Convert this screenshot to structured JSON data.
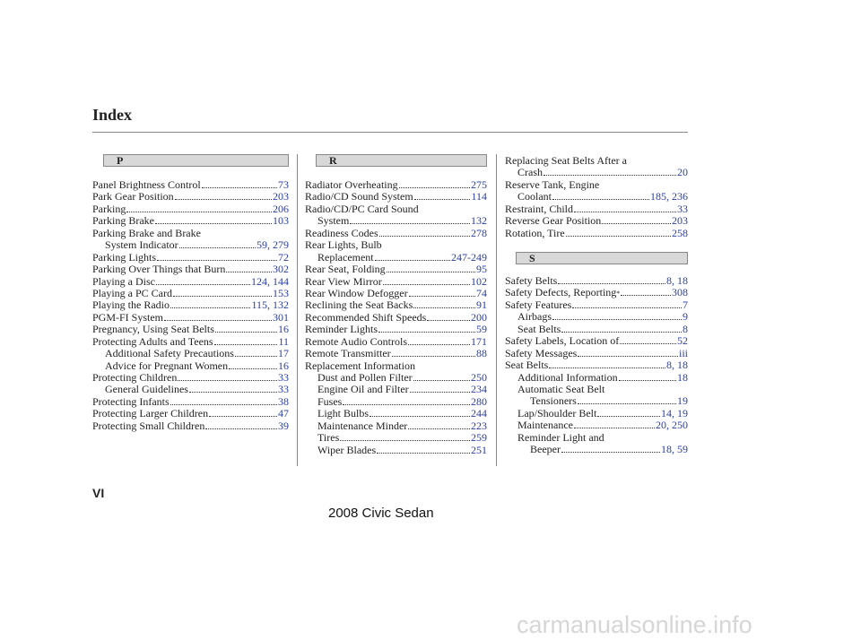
{
  "header": {
    "title": "Index"
  },
  "columns": [
    {
      "sections": [
        {
          "letter": "P",
          "entries": [
            {
              "text": [
                "Panel Brightness Control"
              ],
              "pages": "73"
            },
            {
              "text": [
                "Park Gear Position"
              ],
              "pages": "203"
            },
            {
              "text": [
                "Parking"
              ],
              "pages": "206"
            },
            {
              "text": [
                "Parking Brake"
              ],
              "pages": "103"
            },
            {
              "text": [
                "Parking Brake and Brake",
                "System Indicator"
              ],
              "pages": "59, 279"
            },
            {
              "text": [
                "Parking Lights"
              ],
              "pages": "72"
            },
            {
              "text": [
                "Parking Over Things that Burn"
              ],
              "pages": "302"
            },
            {
              "text": [
                "Playing a Disc"
              ],
              "pages": "124, 144"
            },
            {
              "text": [
                "Playing a PC Card"
              ],
              "pages": "153"
            },
            {
              "text": [
                "Playing the Radio"
              ],
              "pages": "115, 132"
            },
            {
              "text": [
                "PGM-FI System"
              ],
              "pages": "301"
            },
            {
              "text": [
                "Pregnancy, Using Seat Belts"
              ],
              "pages": "16"
            },
            {
              "text": [
                "Protecting Adults and Teens"
              ],
              "pages": "11",
              "subs": [
                {
                  "text": [
                    "Additional Safety Precautions"
                  ],
                  "pages": "17"
                },
                {
                  "text": [
                    "Advice for Pregnant Women"
                  ],
                  "pages": "16"
                }
              ]
            },
            {
              "text": [
                "Protecting Children"
              ],
              "pages": "33",
              "subs": [
                {
                  "text": [
                    "General Guidelines"
                  ],
                  "pages": "33"
                }
              ]
            },
            {
              "text": [
                "Protecting Infants"
              ],
              "pages": "38"
            },
            {
              "text": [
                "Protecting Larger Children"
              ],
              "pages": "47"
            },
            {
              "text": [
                "Protecting Small Children"
              ],
              "pages": "39"
            }
          ]
        }
      ]
    },
    {
      "sections": [
        {
          "letter": "R",
          "entries": [
            {
              "text": [
                "Radiator Overheating"
              ],
              "pages": "275"
            },
            {
              "text": [
                "Radio/CD Sound System"
              ],
              "pages": "114"
            },
            {
              "text": [
                "Radio/CD/PC Card Sound",
                "System"
              ],
              "pages": "132"
            },
            {
              "text": [
                "Readiness Codes"
              ],
              "pages": "278"
            },
            {
              "text": [
                "Rear Lights, Bulb",
                "Replacement"
              ],
              "pages": "247-249"
            },
            {
              "text": [
                "Rear Seat, Folding"
              ],
              "pages": "95"
            },
            {
              "text": [
                "Rear View Mirror"
              ],
              "pages": "102"
            },
            {
              "text": [
                "Rear Window Defogger"
              ],
              "pages": "74"
            },
            {
              "text": [
                "Reclining the Seat Backs"
              ],
              "pages": "91"
            },
            {
              "text": [
                "Recommended Shift Speeds"
              ],
              "pages": "200"
            },
            {
              "text": [
                "Reminder Lights"
              ],
              "pages": "59"
            },
            {
              "text": [
                "Remote Audio Controls"
              ],
              "pages": "171"
            },
            {
              "text": [
                "Remote Transmitter"
              ],
              "pages": "88"
            },
            {
              "text": [
                "Replacement Information"
              ],
              "subs": [
                {
                  "text": [
                    "Dust and Pollen Filter"
                  ],
                  "pages": "250"
                },
                {
                  "text": [
                    "Engine Oil and Filter"
                  ],
                  "pages": "234"
                },
                {
                  "text": [
                    "Fuses"
                  ],
                  "pages": "280"
                },
                {
                  "text": [
                    "Light Bulbs"
                  ],
                  "pages": "244"
                },
                {
                  "text": [
                    "Maintenance Minder"
                  ],
                  "pages": "223"
                },
                {
                  "text": [
                    "Tires"
                  ],
                  "pages": "259"
                },
                {
                  "text": [
                    "Wiper Blades"
                  ],
                  "pages": "251"
                }
              ]
            }
          ]
        }
      ]
    },
    {
      "sections": [
        {
          "entries": [
            {
              "text": [
                "Replacing Seat Belts After a",
                "Crash"
              ],
              "pages": "20"
            },
            {
              "text": [
                "Reserve Tank, Engine",
                "Coolant"
              ],
              "pages": "185, 236"
            },
            {
              "text": [
                "Restraint, Child"
              ],
              "pages": "33"
            },
            {
              "text": [
                "Reverse Gear Position"
              ],
              "pages": "203"
            },
            {
              "text": [
                "Rotation, Tire"
              ],
              "pages": "258"
            }
          ]
        },
        {
          "letter": "S",
          "entries": [
            {
              "text": [
                "Safety Belts"
              ],
              "pages": "8, 18"
            },
            {
              "text": [
                "Safety Defects, Reporting"
              ],
              "note": "*",
              "pages": "308"
            },
            {
              "text": [
                "Safety Features"
              ],
              "pages": "7",
              "subs": [
                {
                  "text": [
                    "Airbags"
                  ],
                  "pages": "9"
                },
                {
                  "text": [
                    "Seat Belts"
                  ],
                  "pages": "8"
                }
              ]
            },
            {
              "text": [
                "Safety Labels, Location of"
              ],
              "pages": "52"
            },
            {
              "text": [
                "Safety Messages"
              ],
              "pages": "iii"
            },
            {
              "text": [
                "Seat Belts"
              ],
              "pages": "8, 18",
              "subs": [
                {
                  "text": [
                    "Additional Information"
                  ],
                  "pages": "18"
                },
                {
                  "text": [
                    "Automatic Seat Belt",
                    "Tensioners"
                  ],
                  "pages": "19"
                },
                {
                  "text": [
                    "Lap/Shoulder Belt"
                  ],
                  "pages": "14, 19"
                },
                {
                  "text": [
                    "Maintenance"
                  ],
                  "pages": "20, 250"
                },
                {
                  "text": [
                    "Reminder Light and",
                    "Beeper"
                  ],
                  "pages": "18, 59"
                }
              ]
            }
          ]
        }
      ]
    }
  ],
  "footer": {
    "page": "VI",
    "model": "2008 Civic Sedan"
  },
  "watermark": "carmanualsonline.info"
}
